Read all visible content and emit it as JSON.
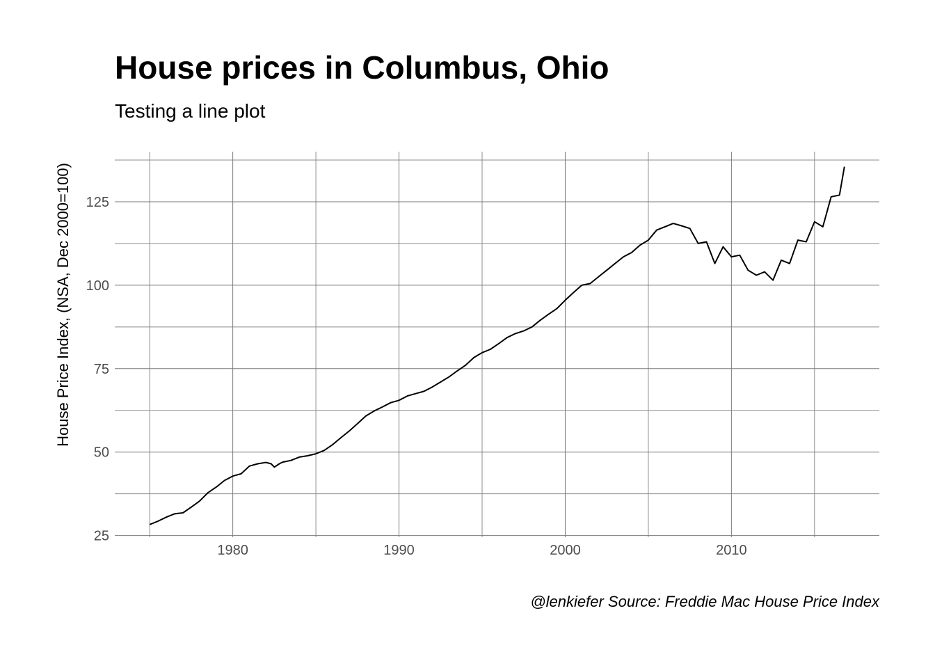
{
  "chart_data": {
    "type": "line",
    "title": "House prices in Columbus, Ohio",
    "subtitle": "Testing a line plot",
    "caption": "@lenkiefer Source: Freddie Mac House Price Index",
    "xlabel": "",
    "ylabel": "House Price Index, (NSA, Dec 2000=100)",
    "xlim": [
      1972.9,
      2018.9
    ],
    "ylim": [
      24.5,
      140
    ],
    "x_ticks": [
      1980,
      1990,
      2000,
      2010
    ],
    "x_tick_labels": [
      "1980",
      "1990",
      "2000",
      "2010"
    ],
    "x_minor": [
      1975,
      1985,
      1995,
      2005,
      2015
    ],
    "y_ticks": [
      25,
      50,
      75,
      100,
      125
    ],
    "y_tick_labels": [
      "25",
      "50",
      "75",
      "100",
      "125"
    ],
    "y_minor": [
      37.5,
      62.5,
      87.5,
      112.5,
      137.5
    ],
    "grid": true,
    "line_color": "#000000",
    "series": [
      {
        "x": [
          1975.0,
          1975.5,
          1976.0,
          1976.5,
          1977.0,
          1977.5,
          1978.0,
          1978.5,
          1979.0,
          1979.5,
          1980.0,
          1980.5,
          1981.0,
          1981.5,
          1982.0,
          1982.3,
          1982.5,
          1982.8,
          1983.0,
          1983.5,
          1984.0,
          1984.5,
          1985.0,
          1985.5,
          1986.0,
          1986.5,
          1987.0,
          1987.5,
          1988.0,
          1988.5,
          1989.0,
          1989.5,
          1990.0,
          1990.5,
          1991.0,
          1991.5,
          1992.0,
          1992.5,
          1993.0,
          1993.5,
          1994.0,
          1994.5,
          1995.0,
          1995.5,
          1996.0,
          1996.5,
          1997.0,
          1997.5,
          1998.0,
          1998.5,
          1999.0,
          1999.5,
          2000.0,
          2000.5,
          2001.0,
          2001.5,
          2002.0,
          2002.5,
          2003.0,
          2003.5,
          2004.0,
          2004.5,
          2005.0,
          2005.5,
          2006.0,
          2006.5,
          2007.0,
          2007.5,
          2008.0,
          2008.5,
          2009.0,
          2009.5,
          2010.0,
          2010.5,
          2011.0,
          2011.5,
          2012.0,
          2012.5,
          2013.0,
          2013.5,
          2014.0,
          2014.5,
          2015.0,
          2015.5,
          2016.0,
          2016.5,
          2016.8
        ],
        "y": [
          28.3,
          29.3,
          30.5,
          31.5,
          31.8,
          33.5,
          35.3,
          37.8,
          39.5,
          41.5,
          42.8,
          43.5,
          45.8,
          46.5,
          46.9,
          46.5,
          45.5,
          46.5,
          47.0,
          47.5,
          48.5,
          48.9,
          49.5,
          50.5,
          52.2,
          54.3,
          56.3,
          58.5,
          60.8,
          62.3,
          63.5,
          64.8,
          65.5,
          66.8,
          67.5,
          68.2,
          69.5,
          71.0,
          72.5,
          74.3,
          76.0,
          78.3,
          79.8,
          80.8,
          82.5,
          84.3,
          85.5,
          86.3,
          87.5,
          89.5,
          91.3,
          93.0,
          95.5,
          97.8,
          100.0,
          100.5,
          102.5,
          104.5,
          106.5,
          108.5,
          109.8,
          112.0,
          113.5,
          116.5,
          117.5,
          118.5,
          117.8,
          117.0,
          112.5,
          113.0,
          106.5,
          111.5,
          108.5,
          109.0,
          104.5,
          103.0,
          104.0,
          101.5,
          107.5,
          106.5,
          113.5,
          113.0,
          119.0,
          117.5,
          126.5,
          127.0,
          135.5
        ]
      }
    ]
  }
}
